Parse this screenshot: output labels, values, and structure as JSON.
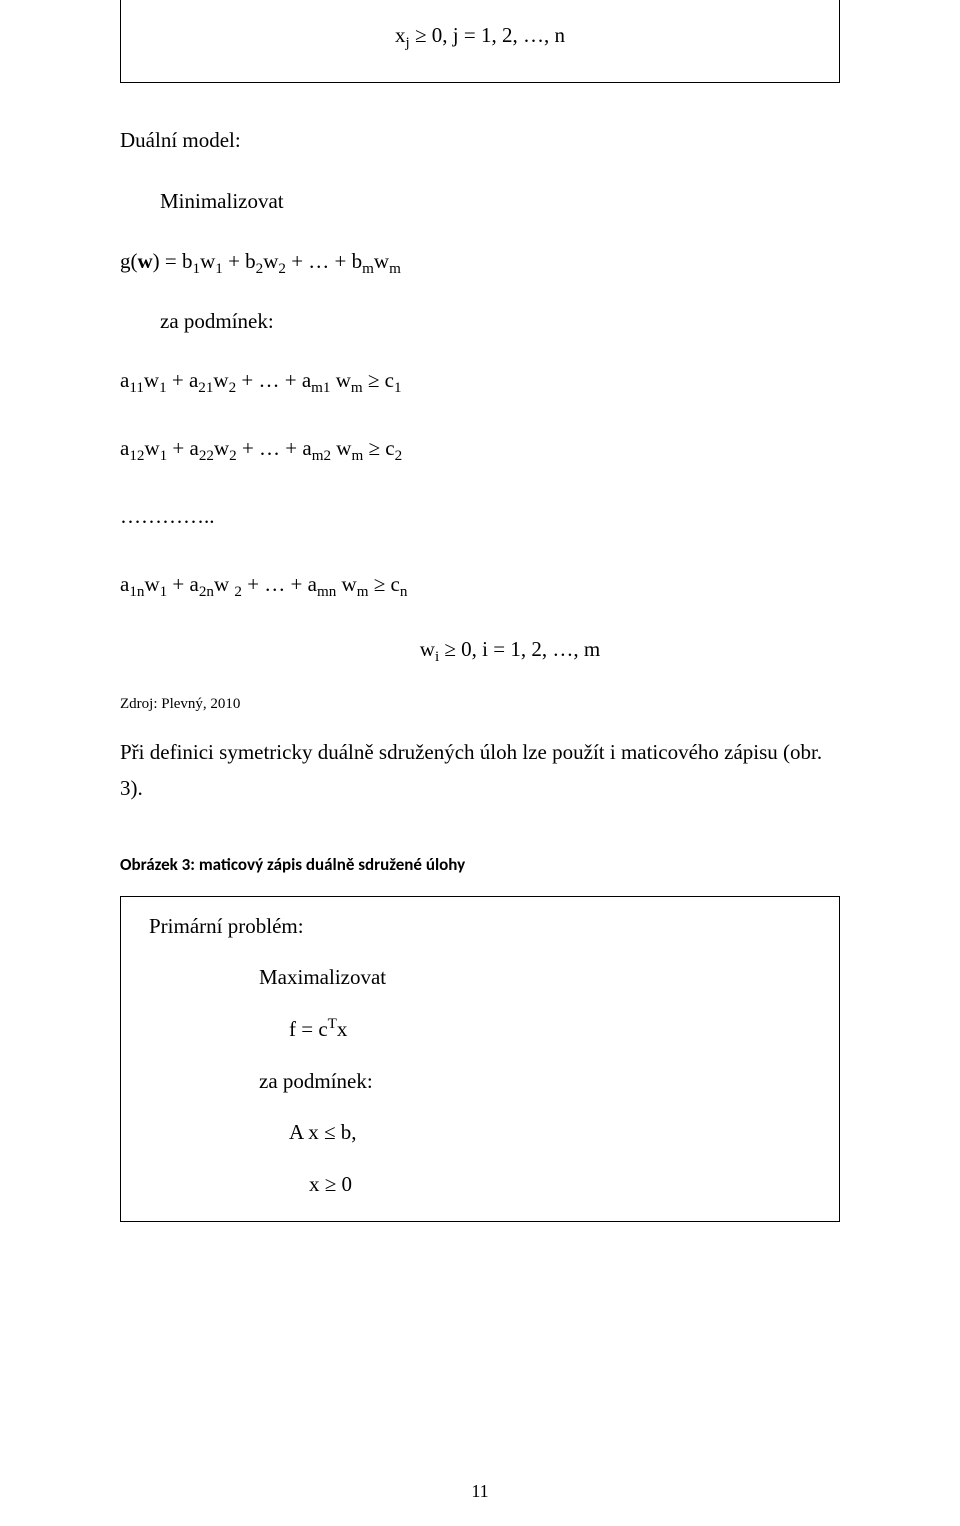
{
  "box1": {
    "line": "x<sub>j</sub> ≥ 0,   j = 1, 2, …, n"
  },
  "section1": {
    "heading": "Duální model:",
    "sub1": "Minimalizovat",
    "obj": "g(<b>w</b>) = b<sub>1</sub>w<sub>1</sub> + b<sub>2</sub>w<sub>2</sub> + … + b<sub>m</sub>w<sub>m</sub>",
    "sub2": "za podmínek:",
    "c1": "a<sub>11</sub>w<sub>1</sub> + a<sub>21</sub>w<sub>2</sub> + … + a<sub>m1</sub> w<sub>m</sub>   ≥ c<sub>1</sub>",
    "c2": "a<sub>12</sub>w<sub>1</sub> + a<sub>22</sub>w<sub>2</sub> + … + a<sub>m2</sub> w<sub>m</sub>   ≥ c<sub>2</sub>",
    "dots": "…………..",
    "cn": "a<sub>1n</sub>w<sub>1</sub> + a<sub>2n</sub>w <sub>2</sub> + … + a<sub>mn</sub> w<sub>m</sub>   ≥ c<sub>n</sub>",
    "nonneg": "w<sub>i</sub> ≥ 0,   i =  1, 2, …, m"
  },
  "source": "Zdroj: Plevný, 2010",
  "para1": "Při definici symetricky duálně sdružených úloh lze použít i maticového zápisu (obr. 3).",
  "caption": "Obrázek 3: maticový zápis duálně sdružené úlohy",
  "box2": {
    "l1": "Primární problém:",
    "l2": "Maximalizovat",
    "l3": "f = c<sup>T</sup>x",
    "l4": "za podmínek:",
    "l5": "A x ≤ b,",
    "l6": "x ≥ 0"
  },
  "pagenum": "11"
}
